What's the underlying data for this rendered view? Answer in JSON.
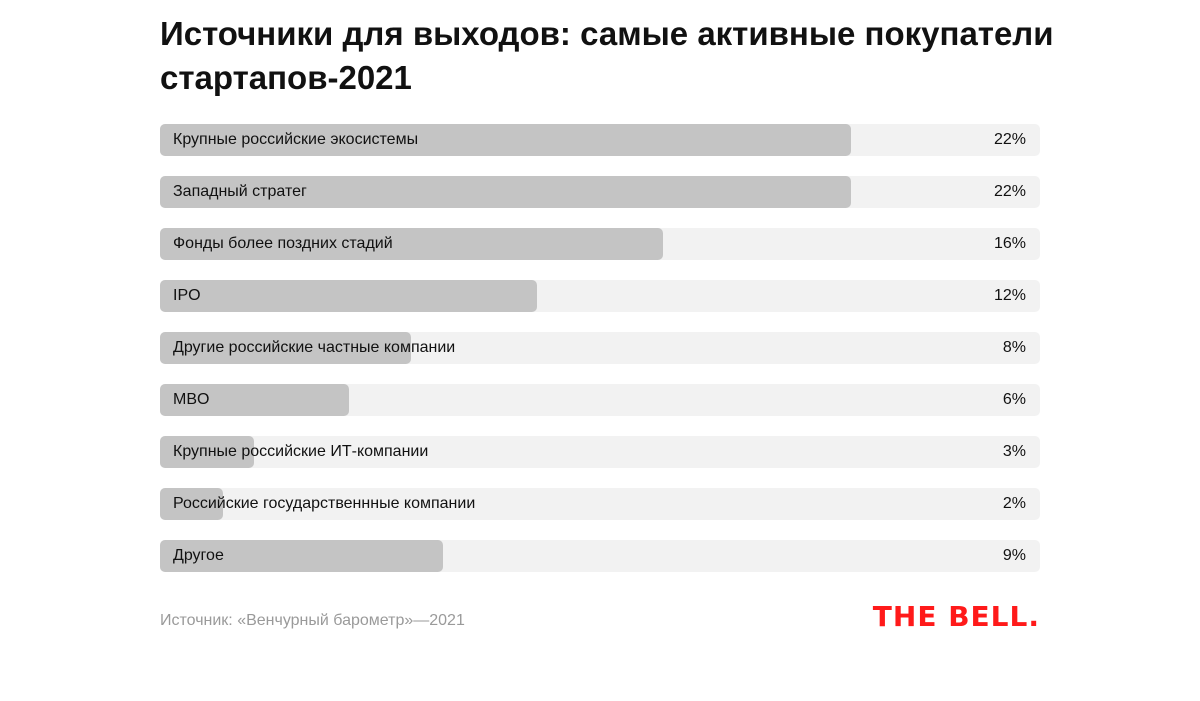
{
  "chart_data": {
    "type": "bar",
    "orientation": "horizontal",
    "title": "Источники для выходов: самые активные покупатели стартапов-2021",
    "categories": [
      "Крупные российские экосистемы",
      "Западный стратег",
      "Фонды более поздних стадий",
      "IPO",
      "Другие российские частные компании",
      "MBO",
      "Крупные российские ИТ-компании",
      "Российские государственнные компании",
      "Другое"
    ],
    "values": [
      22,
      22,
      16,
      12,
      8,
      6,
      3,
      2,
      9
    ],
    "value_labels": [
      "22%",
      "22%",
      "16%",
      "12%",
      "8%",
      "6%",
      "3%",
      "2%",
      "9%"
    ],
    "xlim": [
      0,
      28
    ],
    "grid": false,
    "colors": {
      "bar": "#c4c4c4",
      "track": "#f2f2f2"
    }
  },
  "source": "Источник: «Венчурный барометр»—2021",
  "logo": "THE BELL.",
  "logo_color": "#ff1a1a"
}
